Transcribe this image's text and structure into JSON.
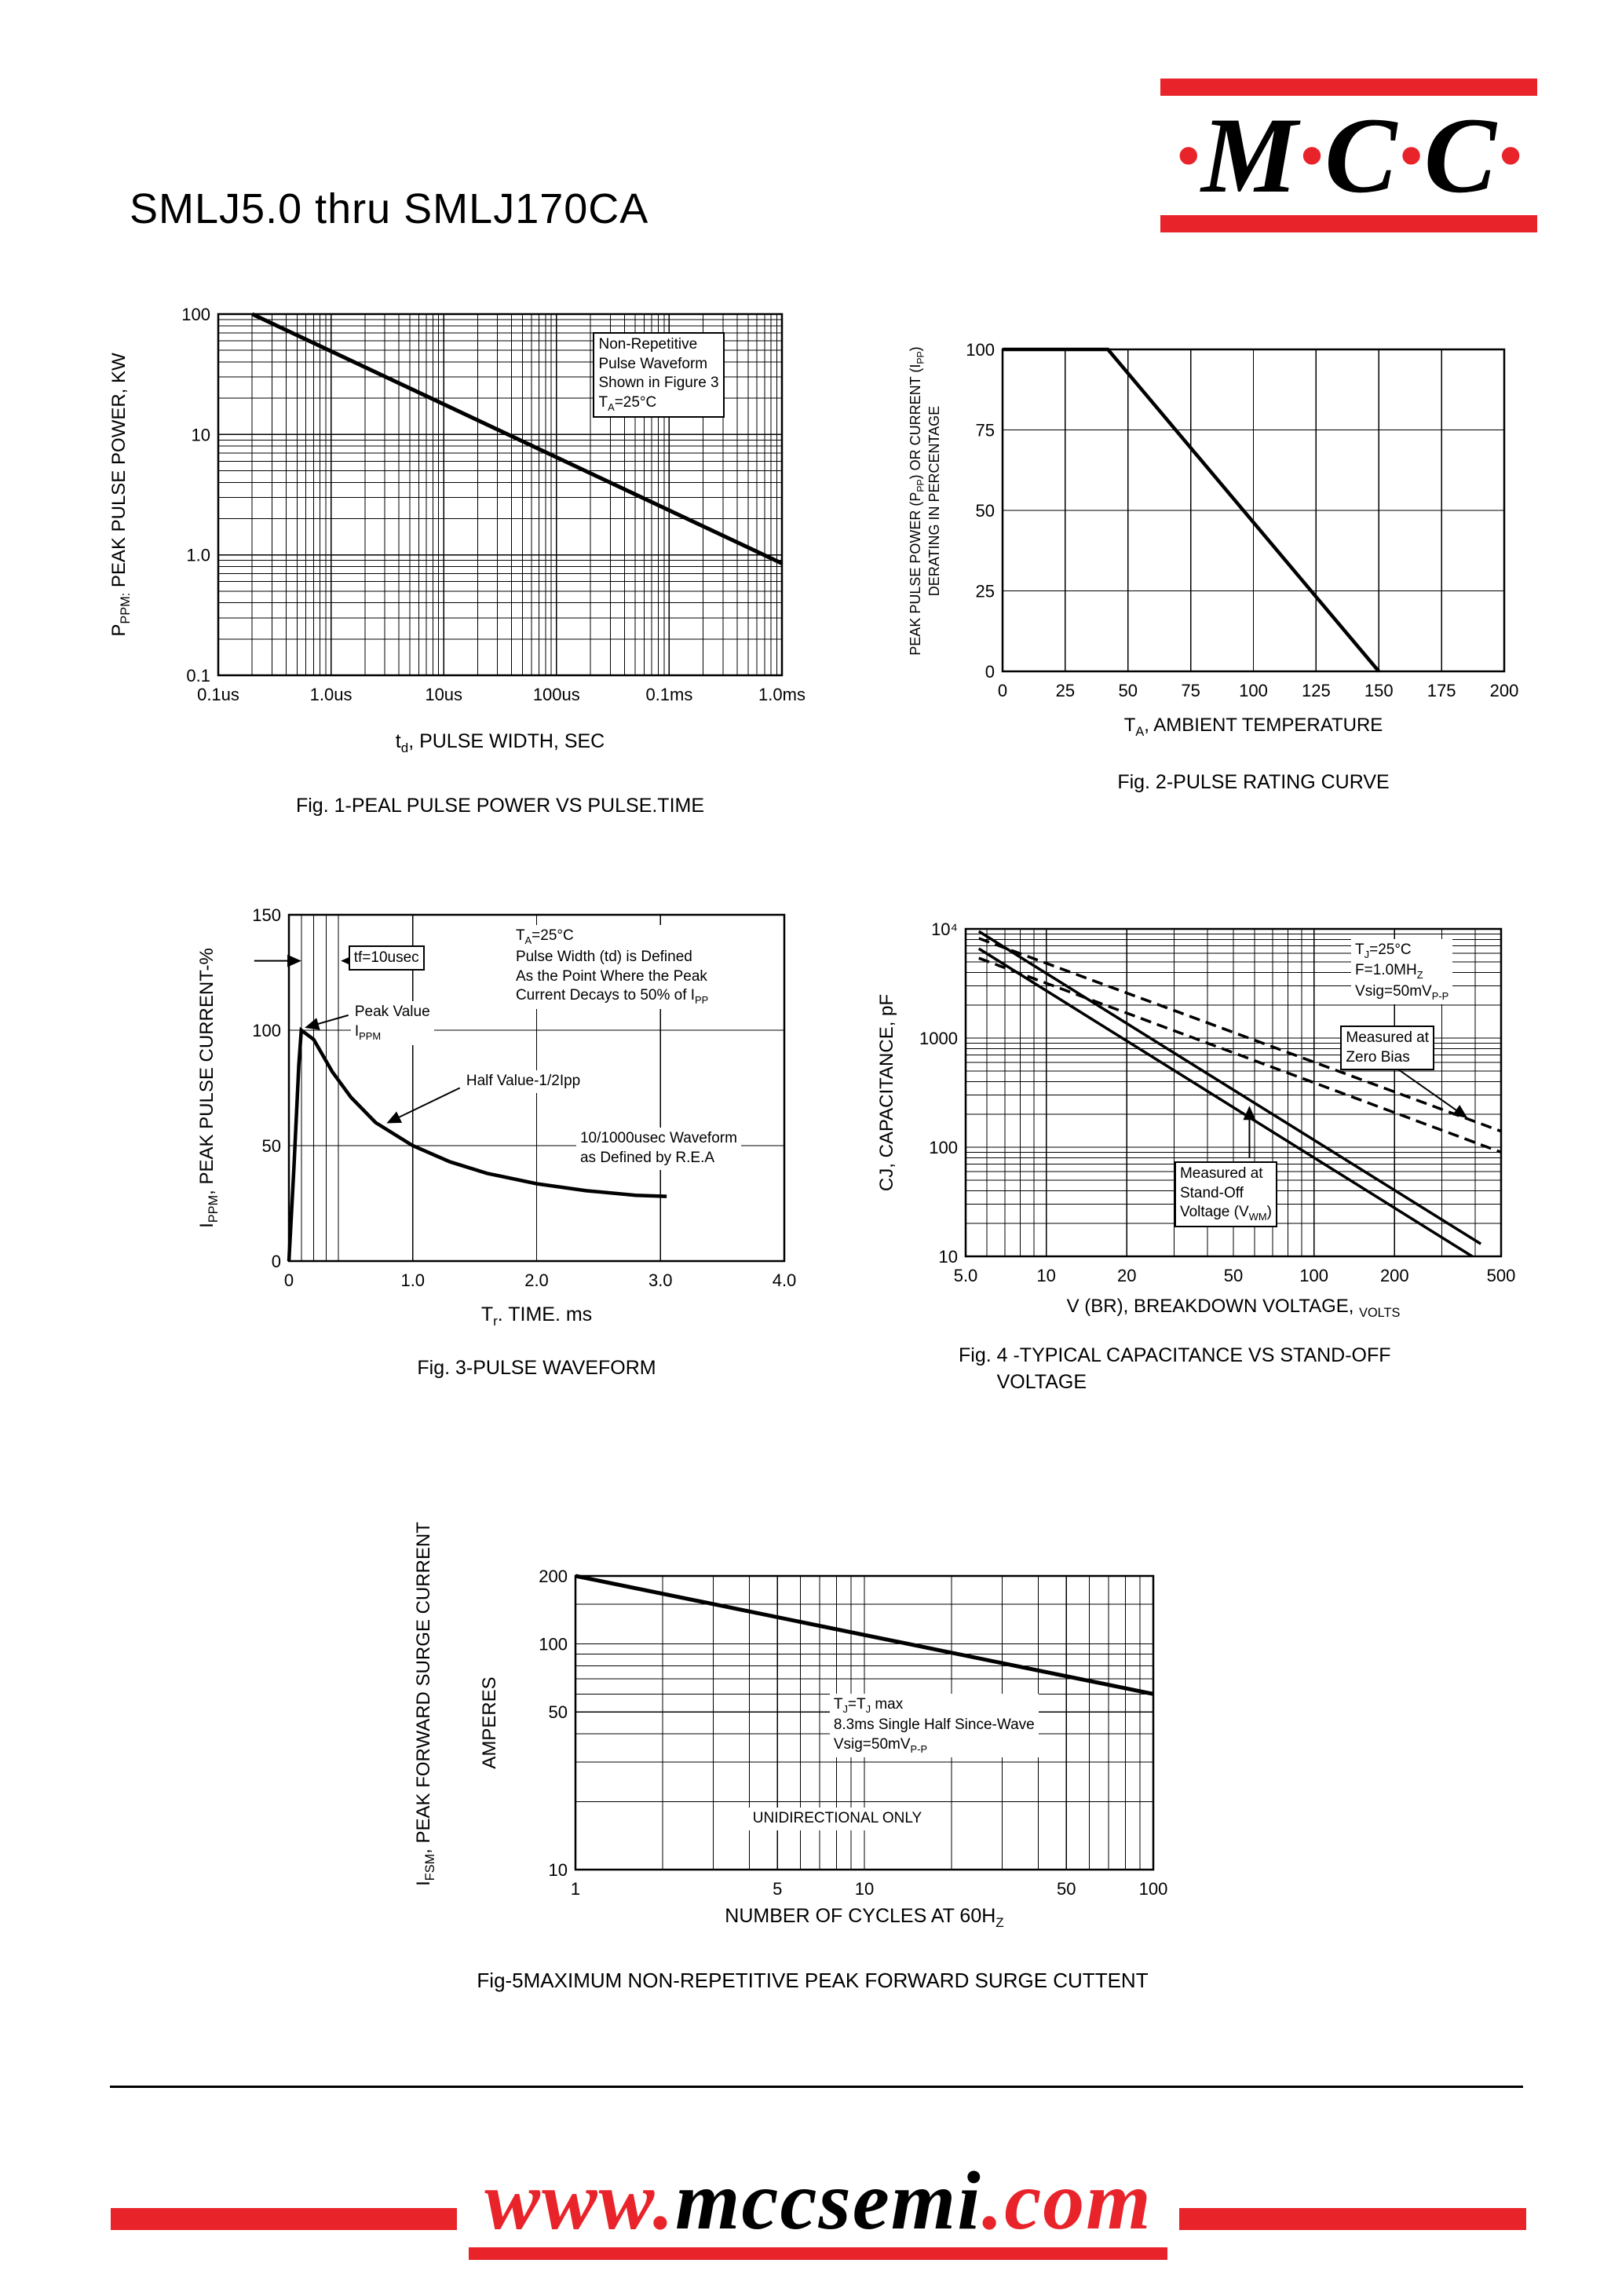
{
  "page": {
    "title": "SMLJ5.0 thru SMLJ170CA",
    "accent_color": "#e8232a",
    "logo": {
      "dot": "·",
      "letters": [
        "M",
        "C",
        "C"
      ]
    },
    "footer": {
      "www": "www.",
      "domain": "mccsemi",
      "com": ".com"
    }
  },
  "chart_data": [
    {
      "id": "fig1",
      "type": "line",
      "caption": "Fig. 1-PEAL PULSE POWER VS PULSE.TIME",
      "xlabel": "t~d~, PULSE WIDTH, SEC",
      "ylabel": "P~PPM:~ PEAK PULSE POWER, KW",
      "x_axis": {
        "scale": "log",
        "min": 1e-07,
        "max": 0.01,
        "minor": true,
        "ticks": [
          {
            "v": 1e-07,
            "label": "0.1us"
          },
          {
            "v": 1e-06,
            "label": "1.0us"
          },
          {
            "v": 1e-05,
            "label": "10us"
          },
          {
            "v": 0.0001,
            "label": "100us"
          },
          {
            "v": 0.001,
            "label": "0.1ms"
          },
          {
            "v": 0.01,
            "label": "1.0ms"
          }
        ]
      },
      "y_axis": {
        "scale": "log",
        "min": 0.1,
        "max": 100,
        "minor": true,
        "ticks": [
          {
            "v": 100,
            "label": "100"
          },
          {
            "v": 10,
            "label": "10"
          },
          {
            "v": 1,
            "label": "1.0"
          },
          {
            "v": 0.1,
            "label": "0.1"
          }
        ]
      },
      "series": [
        {
          "name": "peak-pulse-power",
          "style": "solid",
          "width": 5,
          "points": [
            [
              2e-07,
              100
            ],
            [
              0.01,
              0.85
            ]
          ]
        }
      ],
      "annotations": [
        {
          "text": "Non-Repetitive\nPulse Waveform\nShown in Figure 3\nT~A~=25°C",
          "xf": 0.665,
          "yf": 0.05,
          "boxed": true
        }
      ]
    },
    {
      "id": "fig2",
      "type": "line",
      "caption": "Fig. 2-PULSE RATING CURVE",
      "xlabel": "T~A~, AMBIENT TEMPERATURE",
      "ylabel": "PEAK PULSE POWER (P~PP~) OR CURRENT (I~PP~)\nDERATING IN PERCENTAGE",
      "x_axis": {
        "scale": "linear",
        "min": 0,
        "max": 200,
        "ticks": [
          {
            "v": 0,
            "label": "0"
          },
          {
            "v": 25,
            "label": "25"
          },
          {
            "v": 50,
            "label": "50"
          },
          {
            "v": 75,
            "label": "75"
          },
          {
            "v": 100,
            "label": "100"
          },
          {
            "v": 125,
            "label": "125"
          },
          {
            "v": 150,
            "label": "150"
          },
          {
            "v": 175,
            "label": "175"
          },
          {
            "v": 200,
            "label": "200"
          }
        ]
      },
      "y_axis": {
        "scale": "linear",
        "min": 0,
        "max": 100,
        "ticks": [
          {
            "v": 100,
            "label": "100"
          },
          {
            "v": 75,
            "label": "75"
          },
          {
            "v": 50,
            "label": "50"
          },
          {
            "v": 25,
            "label": "25"
          },
          {
            "v": 0,
            "label": "0"
          }
        ]
      },
      "series": [
        {
          "name": "derating-curve",
          "style": "solid",
          "width": 4.5,
          "points": [
            [
              0,
              100
            ],
            [
              42,
              100
            ],
            [
              150,
              0
            ]
          ]
        }
      ],
      "annotations": []
    },
    {
      "id": "fig3",
      "type": "line",
      "caption": "Fig. 3-PULSE WAVEFORM",
      "xlabel": "T~r~. TIME. ms",
      "ylabel": "I~PPM~, PEAK PULSE CURRENT-%",
      "x_axis": {
        "scale": "linear",
        "min": 0,
        "max": 4,
        "extra": [
          0.1,
          0.2,
          0.3,
          0.4
        ],
        "ticks": [
          {
            "v": 0,
            "label": "0"
          },
          {
            "v": 1,
            "label": "1.0"
          },
          {
            "v": 2,
            "label": "2.0"
          },
          {
            "v": 3,
            "label": "3.0"
          },
          {
            "v": 4,
            "label": "4.0"
          }
        ]
      },
      "y_axis": {
        "scale": "linear",
        "min": 0,
        "max": 150,
        "ticks": [
          {
            "v": 150,
            "label": "150"
          },
          {
            "v": 100,
            "label": "100"
          },
          {
            "v": 50,
            "label": "50"
          },
          {
            "v": 0,
            "label": "0"
          }
        ]
      },
      "series": [
        {
          "name": "pulse-waveform",
          "style": "solid",
          "width": 4.5,
          "points": [
            [
              0,
              0
            ],
            [
              0.04,
              40
            ],
            [
              0.08,
              85
            ],
            [
              0.1,
              100
            ],
            [
              0.2,
              96
            ],
            [
              0.35,
              82
            ],
            [
              0.5,
              71
            ],
            [
              0.7,
              60
            ],
            [
              1.0,
              50
            ],
            [
              1.3,
              43
            ],
            [
              1.6,
              38
            ],
            [
              2.0,
              33.5
            ],
            [
              2.4,
              30.5
            ],
            [
              2.8,
              28.5
            ],
            [
              3.05,
              28
            ]
          ]
        }
      ],
      "annotations": [
        {
          "text": "tf=10usec",
          "xf": 0.12,
          "yf": 0.088,
          "boxed": true
        },
        {
          "text": "Peak Value\nI~PPM~",
          "xf": 0.125,
          "yf": 0.25
        },
        {
          "text": "Half Value-1/2Ipp",
          "xf": 0.35,
          "yf": 0.45
        },
        {
          "text": "T~A~=25°C\nPulse Width (td) is Defined\nAs the Point Where the Peak\nCurrent Decays to 50% of I~PP~",
          "xf": 0.45,
          "yf": 0.03
        },
        {
          "text": "10/1000usec Waveform\nas Defined by R.E.A",
          "xf": 0.58,
          "yf": 0.615
        }
      ],
      "arrows": [
        {
          "x1f": -0.07,
          "y1f": 0.133,
          "x2f": 0.022,
          "y2f": 0.133
        },
        {
          "x1f": 0.19,
          "y1f": 0.133,
          "x2f": 0.108,
          "y2f": 0.133
        },
        {
          "x1f": 0.12,
          "y1f": 0.29,
          "x2f": 0.035,
          "y2f": 0.325
        },
        {
          "x1f": 0.345,
          "y1f": 0.5,
          "x2f": 0.2,
          "y2f": 0.6
        }
      ]
    },
    {
      "id": "fig4",
      "type": "line",
      "caption": "Fig. 4 -TYPICAL CAPACITANCE VS STAND-OFF\n       VOLTAGE",
      "xlabel": "V (BR), BREAKDOWN VOLTAGE, ~VOLTS~",
      "ylabel": "CJ, CAPACITANCE, pF",
      "x_axis": {
        "scale": "log",
        "min": 5,
        "max": 500,
        "minor": true,
        "ticks": [
          {
            "v": 5,
            "label": "5.0"
          },
          {
            "v": 10,
            "label": "10"
          },
          {
            "v": 20,
            "label": "20"
          },
          {
            "v": 50,
            "label": "50"
          },
          {
            "v": 100,
            "label": "100"
          },
          {
            "v": 200,
            "label": "200"
          },
          {
            "v": 500,
            "label": "500"
          }
        ]
      },
      "y_axis": {
        "scale": "log",
        "min": 10,
        "max": 10000,
        "minor": true,
        "ticks": [
          {
            "v": 10000,
            "label": "10⁴"
          },
          {
            "v": 1000,
            "label": "1000"
          },
          {
            "v": 100,
            "label": "100"
          },
          {
            "v": 10,
            "label": "10"
          }
        ]
      },
      "series": [
        {
          "name": "cj-standoff-upper",
          "style": "solid",
          "width": 3.5,
          "points": [
            [
              5.6,
              9500
            ],
            [
              420,
              13
            ]
          ]
        },
        {
          "name": "cj-standoff-lower",
          "style": "solid",
          "width": 3.5,
          "points": [
            [
              5.6,
              6600
            ],
            [
              390,
              10
            ]
          ]
        },
        {
          "name": "cj-zero-bias-upper",
          "style": "dashed",
          "width": 3.5,
          "points": [
            [
              5.6,
              8200
            ],
            [
              500,
              140
            ]
          ]
        },
        {
          "name": "cj-zero-bias-lower",
          "style": "dashed",
          "width": 3.5,
          "points": [
            [
              5.6,
              5400
            ],
            [
              500,
              90
            ]
          ]
        }
      ],
      "annotations": [
        {
          "text": "T~J~=25°C\nF=1.0MH~Z~\nVsig=50mV~P-P~",
          "xf": 0.72,
          "yf": 0.03
        },
        {
          "text": "Measured at\nZero Bias",
          "xf": 0.7,
          "yf": 0.295,
          "boxed": true
        },
        {
          "text": "Measured at\nStand-Off\nVoltage (V~WM~)",
          "xf": 0.39,
          "yf": 0.71,
          "boxed": true
        }
      ],
      "arrows": [
        {
          "x1f": 0.8,
          "y1f": 0.42,
          "x2f": 0.935,
          "y2f": 0.575
        },
        {
          "x1f": 0.53,
          "y1f": 0.7,
          "x2f": 0.53,
          "y2f": 0.545
        }
      ]
    },
    {
      "id": "fig5",
      "type": "line",
      "caption": "Fig-5MAXIMUM NON-REPETITIVE PEAK FORWARD SURGE CUTTENT",
      "xlabel": "NUMBER OF CYCLES AT 60H~Z~",
      "ylabel": "I~FSM~, PEAK FORWARD SURGE CURRENT",
      "ylabel_inner": "AMPERES",
      "x_axis": {
        "scale": "log",
        "min": 1,
        "max": 100,
        "minor": true,
        "ticks": [
          {
            "v": 1,
            "label": "1"
          },
          {
            "v": 5,
            "label": "5"
          },
          {
            "v": 10,
            "label": "10"
          },
          {
            "v": 50,
            "label": "50"
          },
          {
            "v": 100,
            "label": "100"
          }
        ]
      },
      "y_axis": {
        "scale": "log",
        "min": 10,
        "max": 200,
        "minor": true,
        "extra": [
          150
        ],
        "ticks": [
          {
            "v": 200,
            "label": "200"
          },
          {
            "v": 100,
            "label": "100"
          },
          {
            "v": 50,
            "label": "50"
          },
          {
            "v": 10,
            "label": "10"
          }
        ]
      },
      "series": [
        {
          "name": "ifsm-surge-current",
          "style": "solid",
          "width": 5,
          "points": [
            [
              1,
              200
            ],
            [
              100,
              60
            ]
          ]
        }
      ],
      "annotations": [
        {
          "text": "T~J~=T~J~ max\n8.3ms Single Half Since-Wave\nVsig=50mV~P-P~",
          "xf": 0.44,
          "yf": 0.4
        },
        {
          "text": "UNIDIRECTIONAL ONLY",
          "xf": 0.3,
          "yf": 0.79
        }
      ]
    }
  ]
}
